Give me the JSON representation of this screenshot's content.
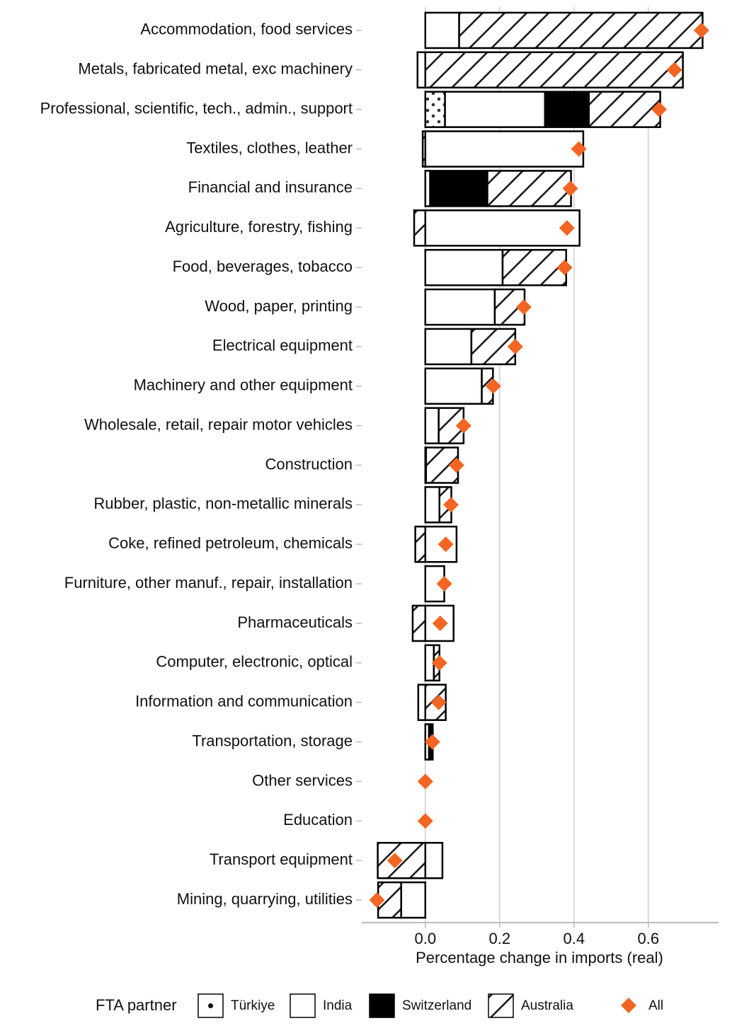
{
  "chart_data": {
    "type": "bar",
    "orientation": "horizontal",
    "stacked": true,
    "x_label": "Percentage change in imports (real)",
    "legend_title": "FTA partner",
    "categories": [
      "Accommodation, food services",
      "Metals, fabricated metal, exc machinery",
      "Professional, scientific, tech., admin., support",
      "Textiles, clothes, leather",
      "Financial and insurance",
      "Agriculture, forestry, fishing",
      "Food, beverages, tobacco",
      "Wood, paper, printing",
      "Electrical equipment",
      "Machinery and other equipment",
      "Wholesale, retail, repair motor vehicles",
      "Construction",
      "Rubber, plastic, non-metallic minerals",
      "Coke, refined petroleum, chemicals",
      "Furniture, other manuf., repair, installation",
      "Pharmaceuticals",
      "Computer, electronic, optical",
      "Information and communication",
      "Transportation, storage",
      "Other services",
      "Education",
      "Transport equipment",
      "Mining, quarrying, utilities"
    ],
    "series": [
      {
        "name": "Türkiye",
        "pattern": "dots",
        "values": [
          0,
          0,
          0.053,
          0,
          0,
          0,
          0,
          0,
          0,
          0,
          0,
          0,
          0,
          0,
          0,
          0,
          0,
          0,
          0,
          0,
          0,
          0,
          0
        ]
      },
      {
        "name": "India",
        "pattern": "none",
        "values": [
          0.091,
          -0.021,
          0.269,
          0.425,
          0.013,
          0.415,
          0.208,
          0.187,
          0.124,
          0.152,
          0.036,
          0.002,
          0.038,
          0.084,
          0.051,
          0.076,
          0.023,
          -0.019,
          0.01,
          0,
          0,
          0.046,
          -0.065
        ]
      },
      {
        "name": "Switzerland",
        "pattern": "solid",
        "values": [
          0,
          0,
          0.118,
          0,
          0.154,
          0,
          0,
          0,
          0,
          0,
          0,
          0,
          0,
          0,
          0,
          0,
          0,
          0,
          0.01,
          0,
          0,
          0,
          0
        ]
      },
      {
        "name": "Australia",
        "pattern": "hatch",
        "values": [
          0.655,
          0.693,
          0.192,
          -0.007,
          0.225,
          -0.03,
          0.171,
          0.08,
          0.118,
          0.03,
          0.067,
          0.086,
          0.032,
          -0.027,
          0,
          -0.034,
          0.015,
          0.055,
          0,
          0,
          0,
          -0.128,
          -0.062
        ]
      }
    ],
    "total": {
      "name": "All",
      "color": "#f26522",
      "marker": "diamond",
      "values": [
        0.743,
        0.67,
        0.629,
        0.413,
        0.39,
        0.381,
        0.375,
        0.265,
        0.242,
        0.183,
        0.103,
        0.084,
        0.069,
        0.055,
        0.051,
        0.04,
        0.038,
        0.036,
        0.019,
        0,
        0,
        -0.082,
        -0.13
      ]
    },
    "xlim": [
      -0.171,
      0.789
    ],
    "xticks": [
      {
        "value": 0,
        "label": "0.0"
      },
      0.2,
      0.4,
      0.6
    ],
    "grid": true
  }
}
